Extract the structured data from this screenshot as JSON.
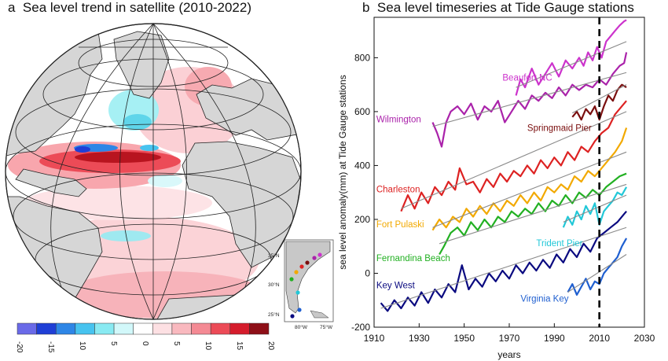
{
  "panel_a": {
    "label": "a",
    "title": "Sea level trend in satellite (2010-2022)",
    "colorbar": {
      "ticks": [
        "-20",
        "-15",
        "10",
        "5",
        "0",
        "5",
        "10",
        "15",
        "20"
      ],
      "colors": [
        "#6a6ae8",
        "#1f3fd6",
        "#2e86e6",
        "#47c3ef",
        "#89eaf2",
        "#d2f8fa",
        "#ffffff",
        "#fde0e3",
        "#f9b9bf",
        "#f48a94",
        "#ec4b57",
        "#d51c2c",
        "#8e0f17"
      ]
    },
    "inset": {
      "lat_labels": [
        "35°N",
        "30°N",
        "25°N"
      ],
      "lon_labels": [
        "80°W",
        "75°W"
      ],
      "station_colors": [
        "#cc33cc",
        "#aa22aa",
        "#7a0e0e",
        "#dd2222",
        "#f2a900",
        "#22b022",
        "#22c8d8",
        "#1f5fd0",
        "#0a0a80"
      ]
    }
  },
  "panel_b": {
    "label": "b",
    "title": "Sea level timeseries at Tide Gauge stations"
  },
  "chart_data": {
    "type": "line",
    "title": "Sea level timeseries at Tide Gauge stations",
    "xlabel": "years",
    "ylabel": "sea level anomaly(mm) at Tide Gauge stations",
    "xlim": [
      1910,
      2030
    ],
    "ylim": [
      -200,
      950
    ],
    "xticks": [
      1910,
      1930,
      1950,
      1970,
      1990,
      2010,
      2030
    ],
    "yticks": [
      -200,
      0,
      200,
      400,
      600,
      800
    ],
    "vline": {
      "x": 2010,
      "style": "dashed"
    },
    "series": [
      {
        "name": "Beaufort NC",
        "color": "#cc33cc",
        "label_at": [
          1967,
          715
        ],
        "x": [
          1973,
          1975,
          1977,
          1980,
          1983,
          1986,
          1989,
          1992,
          1995,
          1998,
          2001,
          2003,
          2005,
          2007,
          2009,
          2011,
          2013,
          2015,
          2017,
          2019,
          2021,
          2022
        ],
        "y": [
          660,
          720,
          690,
          760,
          700,
          740,
          780,
          730,
          790,
          760,
          800,
          770,
          820,
          790,
          840,
          800,
          860,
          880,
          900,
          920,
          935,
          940
        ],
        "trend": [
          [
            1973,
            690
          ],
          [
            2022,
            860
          ]
        ]
      },
      {
        "name": "Wilmington",
        "color": "#aa22aa",
        "label_at": [
          1911,
          560
        ],
        "x": [
          1936,
          1938,
          1940,
          1942,
          1944,
          1947,
          1950,
          1953,
          1956,
          1959,
          1962,
          1965,
          1968,
          1971,
          1974,
          1977,
          1980,
          1983,
          1986,
          1989,
          1992,
          1995,
          1998,
          2001,
          2004,
          2007,
          2010,
          2013,
          2016,
          2019,
          2021,
          2022
        ],
        "y": [
          560,
          520,
          470,
          560,
          600,
          620,
          590,
          630,
          570,
          620,
          600,
          640,
          560,
          600,
          640,
          610,
          660,
          640,
          670,
          650,
          690,
          660,
          700,
          680,
          700,
          690,
          720,
          700,
          740,
          770,
          780,
          820
        ],
        "trend": [
          [
            1936,
            545
          ],
          [
            2022,
            745
          ]
        ]
      },
      {
        "name": "Springmaid Pier",
        "color": "#7a0e0e",
        "label_at": [
          1978,
          528
        ],
        "x": [
          1998,
          2000,
          2002,
          2004,
          2006,
          2008,
          2010,
          2012,
          2014,
          2016,
          2018,
          2020,
          2022
        ],
        "y": [
          580,
          600,
          570,
          610,
          590,
          620,
          570,
          620,
          660,
          640,
          680,
          700,
          690
        ],
        "trend": [
          [
            1998,
            595
          ],
          [
            2022,
            700
          ]
        ]
      },
      {
        "name": "Charleston",
        "color": "#dd2222",
        "label_at": [
          1911,
          300
        ],
        "x": [
          1922,
          1925,
          1928,
          1931,
          1934,
          1937,
          1940,
          1943,
          1946,
          1948,
          1951,
          1954,
          1957,
          1960,
          1963,
          1966,
          1969,
          1972,
          1975,
          1978,
          1981,
          1984,
          1987,
          1990,
          1993,
          1996,
          1999,
          2002,
          2005,
          2008,
          2011,
          2014,
          2017,
          2020,
          2022
        ],
        "y": [
          230,
          290,
          240,
          300,
          260,
          320,
          290,
          340,
          310,
          390,
          330,
          340,
          300,
          350,
          320,
          370,
          340,
          380,
          360,
          400,
          370,
          420,
          390,
          430,
          400,
          450,
          420,
          470,
          450,
          490,
          520,
          540,
          590,
          620,
          640
        ],
        "trend": [
          [
            1922,
            240
          ],
          [
            2022,
            600
          ]
        ]
      },
      {
        "name": "Fort Pulaski",
        "color": "#f2a900",
        "label_at": [
          1911,
          170
        ],
        "x": [
          1936,
          1939,
          1942,
          1945,
          1948,
          1951,
          1954,
          1957,
          1960,
          1963,
          1966,
          1969,
          1972,
          1975,
          1978,
          1981,
          1984,
          1987,
          1990,
          1993,
          1996,
          1999,
          2002,
          2005,
          2008,
          2011,
          2014,
          2017,
          2020,
          2022
        ],
        "y": [
          160,
          200,
          170,
          210,
          190,
          240,
          210,
          250,
          220,
          260,
          230,
          270,
          250,
          290,
          260,
          300,
          270,
          320,
          300,
          330,
          310,
          360,
          340,
          380,
          360,
          390,
          420,
          450,
          490,
          540
        ],
        "trend": [
          [
            1936,
            170
          ],
          [
            2022,
            450
          ]
        ]
      },
      {
        "name": "Fernandina Beach",
        "color": "#22b022",
        "label_at": [
          1911,
          45
        ],
        "x": [
          1939,
          1941,
          1944,
          1947,
          1950,
          1953,
          1956,
          1959,
          1962,
          1965,
          1968,
          1971,
          1974,
          1977,
          1980,
          1983,
          1986,
          1989,
          1992,
          1995,
          1998,
          2001,
          2004,
          2007,
          2010,
          2013,
          2016,
          2019,
          2022
        ],
        "y": [
          70,
          100,
          150,
          170,
          140,
          190,
          160,
          200,
          170,
          210,
          190,
          230,
          210,
          240,
          220,
          260,
          230,
          270,
          250,
          290,
          260,
          300,
          280,
          310,
          290,
          320,
          340,
          360,
          370
        ],
        "trend": [
          [
            1939,
            110
          ],
          [
            2022,
            330
          ]
        ]
      },
      {
        "name": "Trident Pier",
        "color": "#22c8d8",
        "label_at": [
          1982,
          100
        ],
        "x": [
          1994,
          1996,
          1998,
          2000,
          2002,
          2004,
          2006,
          2008,
          2010,
          2012,
          2014,
          2016,
          2018,
          2020,
          2022
        ],
        "y": [
          170,
          210,
          180,
          230,
          200,
          250,
          220,
          260,
          180,
          230,
          250,
          270,
          300,
          290,
          320
        ],
        "trend": [
          [
            1994,
            190
          ],
          [
            2022,
            290
          ]
        ]
      },
      {
        "name": "Key West",
        "color": "#0a0a80",
        "label_at": [
          1911,
          -55
        ],
        "x": [
          1913,
          1916,
          1919,
          1922,
          1925,
          1928,
          1931,
          1934,
          1937,
          1940,
          1943,
          1946,
          1949,
          1952,
          1955,
          1958,
          1961,
          1964,
          1967,
          1970,
          1973,
          1976,
          1979,
          1982,
          1985,
          1988,
          1991,
          1994,
          1997,
          2000,
          2003,
          2006,
          2009,
          2012,
          2015,
          2018,
          2021,
          2022
        ],
        "y": [
          -110,
          -140,
          -100,
          -130,
          -90,
          -120,
          -70,
          -110,
          -60,
          -90,
          -40,
          -70,
          30,
          -60,
          -20,
          -50,
          0,
          -30,
          10,
          -20,
          30,
          0,
          40,
          10,
          50,
          20,
          70,
          40,
          90,
          60,
          110,
          80,
          130,
          150,
          170,
          190,
          220,
          230
        ],
        "trend": [
          [
            1913,
            -130
          ],
          [
            2022,
            170
          ]
        ]
      },
      {
        "name": "Virginia Key",
        "color": "#1f5fd0",
        "label_at": [
          1975,
          -105
        ],
        "x": [
          1996,
          1998,
          2000,
          2002,
          2004,
          2006,
          2008,
          2010,
          2012,
          2014,
          2016,
          2018,
          2020,
          2022
        ],
        "y": [
          -70,
          -40,
          -80,
          -50,
          -20,
          -60,
          -30,
          -40,
          0,
          20,
          40,
          60,
          100,
          130
        ],
        "trend": [
          [
            1996,
            -70
          ],
          [
            2022,
            70
          ]
        ]
      }
    ]
  }
}
